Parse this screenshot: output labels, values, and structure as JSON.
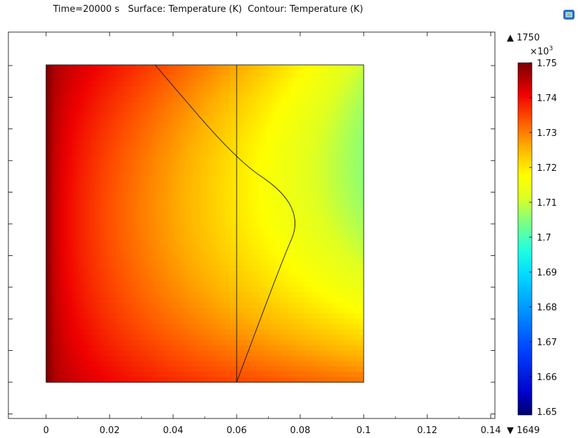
{
  "header": {
    "title": "Time=20000 s   Surface: Temperature (K)  Contour: Temperature (K)"
  },
  "icons": {
    "logo": "comsol-logo-icon"
  },
  "chart_data": {
    "type": "heatmap",
    "title": "Time=20000 s   Surface: Temperature (K)  Contour: Temperature (K)",
    "xlim": [
      0,
      0.14
    ],
    "ylim": [
      0,
      0.1
    ],
    "x_ticks": [
      0,
      0.02,
      0.04,
      0.06,
      0.08,
      0.1,
      0.12,
      0.14
    ],
    "x_tick_labels": [
      "0",
      "0.02",
      "0.04",
      "0.06",
      "0.08",
      "0.1",
      "0.12",
      "0.14"
    ],
    "domain": {
      "x": [
        0,
        0.1
      ],
      "y": [
        0,
        0.1
      ]
    },
    "interior_boundary_x": 0.06,
    "temperature_K": {
      "min": 1649,
      "max": 1750,
      "max_label": "▲ 1750",
      "min_label": "▼ 1649"
    },
    "colorbar": {
      "multiplier": "×10",
      "exponent": "3",
      "ticks": [
        1.75,
        1.74,
        1.73,
        1.72,
        1.71,
        1.7,
        1.69,
        1.68,
        1.67,
        1.66,
        1.65
      ],
      "tick_labels": [
        "1.75",
        "1.74",
        "1.73",
        "1.72",
        "1.71",
        "1.7",
        "1.69",
        "1.68",
        "1.67",
        "1.66",
        "1.65"
      ],
      "colormap": "rainbow"
    },
    "contour": {
      "level_K": 1690,
      "points": [
        [
          0.0343,
          0.1
        ],
        [
          0.06,
          0.07
        ],
        [
          0.075,
          0.06
        ],
        [
          0.0795,
          0.05
        ],
        [
          0.075,
          0.04
        ],
        [
          0.06,
          0.0
        ]
      ]
    },
    "grid": false
  }
}
